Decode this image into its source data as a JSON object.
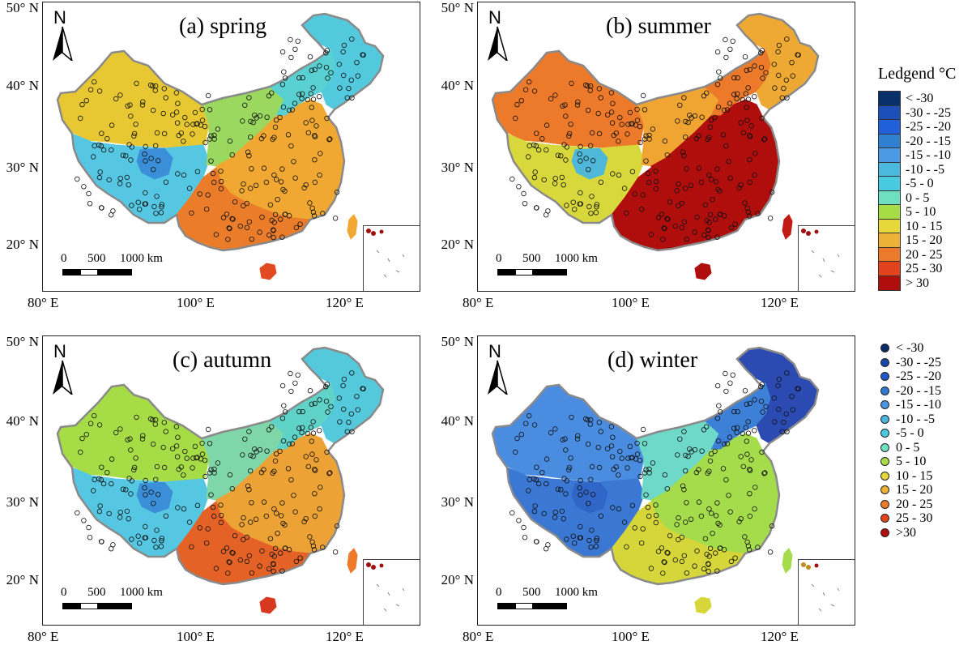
{
  "panels": [
    {
      "label": "(a) spring",
      "north": "N",
      "y_ticks": [
        "50° N",
        "40° N",
        "30° N",
        "20° N"
      ],
      "x_ticks": [
        "80° E",
        "100° E",
        "120° E"
      ],
      "scale": {
        "zero": "0",
        "mid": "500",
        "end": "1000 km"
      },
      "season": "spring",
      "colors": {
        "west": "#e7c832",
        "tibet": "#55c7e2",
        "basin": "#3a8fd8",
        "center": "#9ad860",
        "north": "#59d1d2",
        "northeast": "#52c9dc",
        "southeast": "#f0a832",
        "south": "#ea7c2a",
        "taiwan": "#f0a832",
        "hainan": "#e24a22"
      }
    },
    {
      "label": "(b) summer",
      "north": "N",
      "y_ticks": [
        "50° N",
        "40° N",
        "30° N",
        "20° N"
      ],
      "x_ticks": [
        "80° E",
        "100° E",
        "120° E"
      ],
      "scale": {
        "zero": "0",
        "mid": "500",
        "end": "1000 km"
      },
      "season": "summer",
      "colors": {
        "west": "#ec7a2a",
        "tibet": "#d8d83c",
        "basin": "#4fb8d8",
        "center": "#f0a432",
        "north": "#ec7a2a",
        "northeast": "#eea834",
        "southeast": "#b00d0d",
        "south": "#b00d0d",
        "taiwan": "#c01a12",
        "hainan": "#b00d0d"
      }
    },
    {
      "label": "(c) autumn",
      "north": "N",
      "y_ticks": [
        "50° N",
        "40° N",
        "30° N",
        "20° N"
      ],
      "x_ticks": [
        "80° E",
        "100° E",
        "120° E"
      ],
      "scale": {
        "zero": "0",
        "mid": "500",
        "end": "1000 km"
      },
      "season": "autumn",
      "colors": {
        "west": "#a6dc46",
        "tibet": "#55c7e2",
        "basin": "#3a8fd8",
        "center": "#7fd6a8",
        "north": "#5fd3c8",
        "northeast": "#55c9dc",
        "southeast": "#eda236",
        "south": "#e46226",
        "taiwan": "#ec7a2a",
        "hainan": "#d63820"
      }
    },
    {
      "label": "(d) winter",
      "north": "N",
      "y_ticks": [
        "50° N",
        "40° N",
        "30° N",
        "20° N"
      ],
      "x_ticks": [
        "80° E",
        "100° E",
        "120° E"
      ],
      "scale": {
        "zero": "0",
        "mid": "500",
        "end": "1000 km"
      },
      "season": "winter",
      "colors": {
        "west": "#4a8ce0",
        "tibet": "#3a78d4",
        "basin": "#2f66c8",
        "center": "#6ed9c8",
        "north": "#3d80d8",
        "northeast": "#2b4bb2",
        "southeast": "#a5dc4c",
        "south": "#d6d63a",
        "taiwan": "#a5dc4c",
        "hainan": "#d6d63a"
      }
    }
  ],
  "legend": {
    "title": "Ledgend °C",
    "items": [
      {
        "label": "< -30",
        "color": "#08306b"
      },
      {
        "label": "-30 - -25",
        "color": "#1c4fb8"
      },
      {
        "label": "-25 - -20",
        "color": "#2060d8"
      },
      {
        "label": "-20 - -15",
        "color": "#2f80d0"
      },
      {
        "label": "-15 - -10",
        "color": "#4a9ae6"
      },
      {
        "label": "-10 - -5",
        "color": "#4bb8e0"
      },
      {
        "label": "-5 - 0",
        "color": "#48cbe0"
      },
      {
        "label": "0 - 5",
        "color": "#6ee0c0"
      },
      {
        "label": "5 - 10",
        "color": "#a6dc46"
      },
      {
        "label": "10 - 15",
        "color": "#e6d838"
      },
      {
        "label": "15 - 20",
        "color": "#ecb236"
      },
      {
        "label": "20 - 25",
        "color": "#ec7a2a"
      },
      {
        "label": "25 - 30",
        "color": "#e2421c"
      },
      {
        "label": "> 30",
        "color": "#b00d0d"
      }
    ]
  },
  "point_legend": {
    "items": [
      {
        "label": "< -30",
        "color": "#0b2a66"
      },
      {
        "label": "-30 - -25",
        "color": "#1a45a8"
      },
      {
        "label": "-25 - -20",
        "color": "#2058c8"
      },
      {
        "label": "-20 - -15",
        "color": "#2f7ad0"
      },
      {
        "label": "-15 - -10",
        "color": "#4a96e2"
      },
      {
        "label": "-10 - -5",
        "color": "#4ab6e0"
      },
      {
        "label": "-5 - 0",
        "color": "#48cbe0"
      },
      {
        "label": "0 - 5",
        "color": "#6ee0c0"
      },
      {
        "label": "5 - 10",
        "color": "#a6dc46"
      },
      {
        "label": "10 - 15",
        "color": "#e6d838"
      },
      {
        "label": "15 - 20",
        "color": "#ecb236"
      },
      {
        "label": "20 - 25",
        "color": "#ec7a2a"
      },
      {
        "label": "25 - 30",
        "color": "#e2421c"
      },
      {
        "label": ">30",
        "color": "#b00d0d"
      }
    ]
  }
}
